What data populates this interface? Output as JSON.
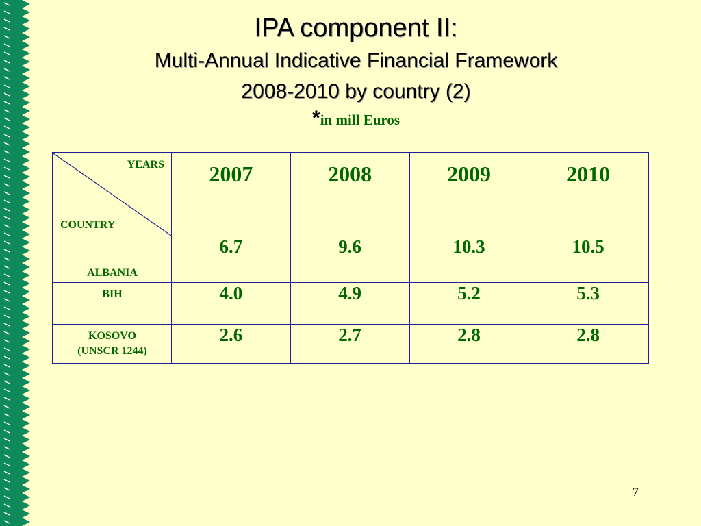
{
  "title": {
    "line1": "IPA component II:",
    "line2": "Multi-Annual Indicative Financial Framework",
    "line3": "2008-2010 by country (2)",
    "star": "*",
    "unit": "in mill Euros"
  },
  "table": {
    "corner_years": "YEARS",
    "corner_country": "COUNTRY",
    "years": [
      "2007",
      "2008",
      "2009",
      "2010"
    ],
    "rows": [
      {
        "country": "ALBANIA",
        "values": [
          "6.7",
          "9.6",
          "10.3",
          "10.5"
        ]
      },
      {
        "country": "BIH",
        "values": [
          "4.0",
          "4.9",
          "5.2",
          "5.3"
        ]
      },
      {
        "country_line1": "KOSOVO",
        "country_line2": "(UNSCR 1244)",
        "values": [
          "2.6",
          "2.7",
          "2.8",
          "2.8"
        ]
      }
    ]
  },
  "page_number": "7",
  "colors": {
    "background": "#ffffcc",
    "side_band": "#0e8a5c",
    "text_green": "#006600",
    "border_blue": "#1f1f99"
  }
}
